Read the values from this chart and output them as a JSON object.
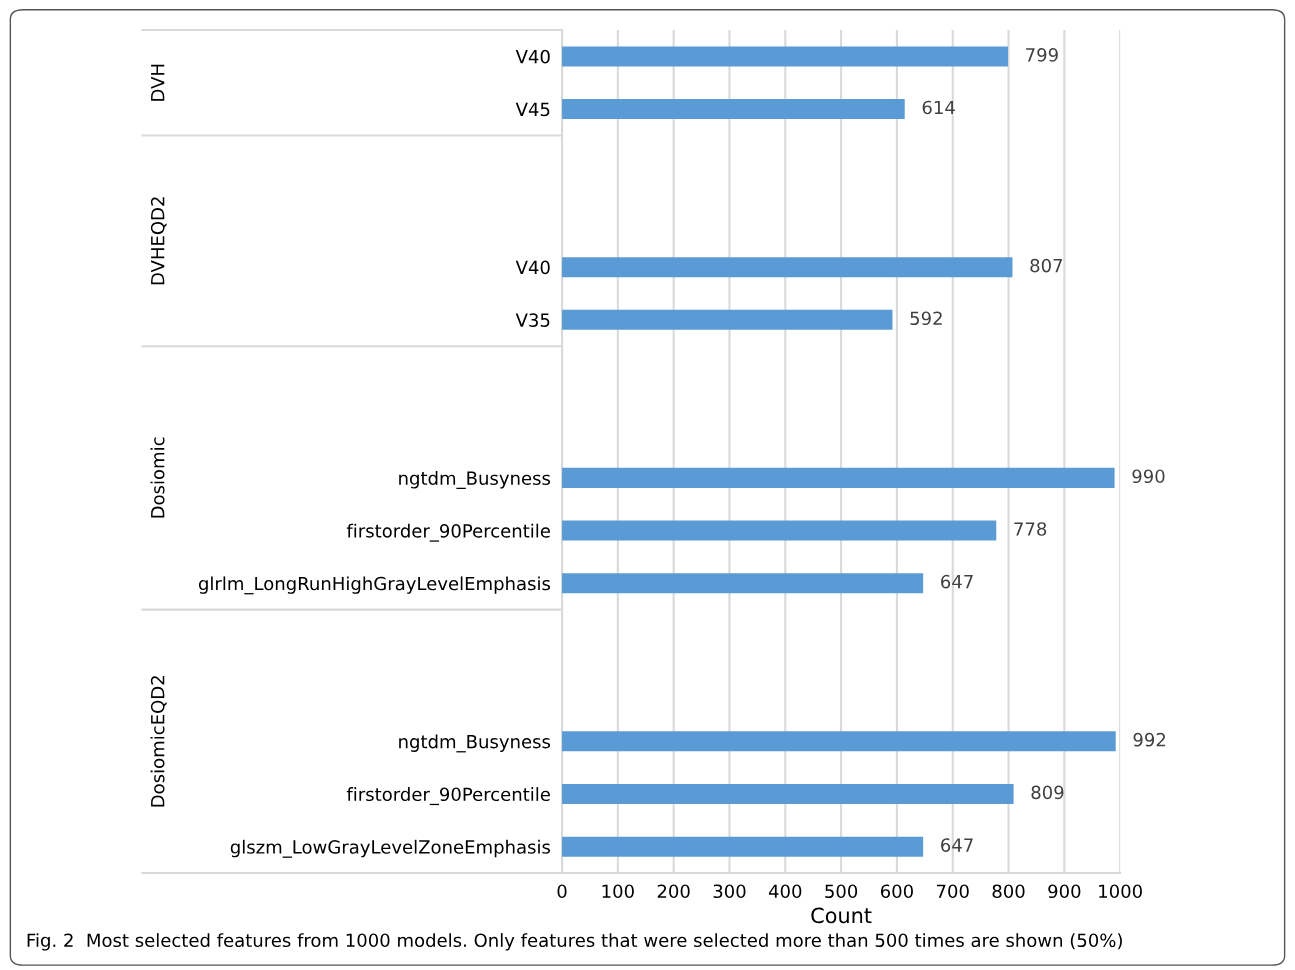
{
  "chart_data": {
    "type": "bar",
    "orientation": "horizontal",
    "categories": [
      "V40",
      "V45",
      null,
      null,
      "V40",
      "V35",
      null,
      null,
      "ngtdm_Busyness",
      "firstorder_90Percentile",
      "glrlm_LongRunHighGrayLevelEmphasis",
      null,
      null,
      "ngtdm_Busyness",
      "firstorder_90Percentile",
      "glszm_LowGrayLevelZoneEmphasis"
    ],
    "values": [
      799,
      614,
      null,
      null,
      807,
      592,
      null,
      null,
      990,
      778,
      647,
      null,
      null,
      992,
      809,
      647
    ],
    "color": "#5b9bd5",
    "xlabel": "Count",
    "xlim": [
      0,
      1000
    ],
    "xticks": [
      0,
      100,
      200,
      300,
      400,
      500,
      600,
      700,
      800,
      900,
      1000
    ],
    "grid": "x",
    "data_labels": true,
    "annotations": [
      "DVH",
      "DVHEQD2",
      "Dosiomic",
      "DosiomicEQD2",
      "Fig. 2  Most selected features from 1000 models. Only features that were selected more than 500 times are shown (50%)"
    ]
  }
}
